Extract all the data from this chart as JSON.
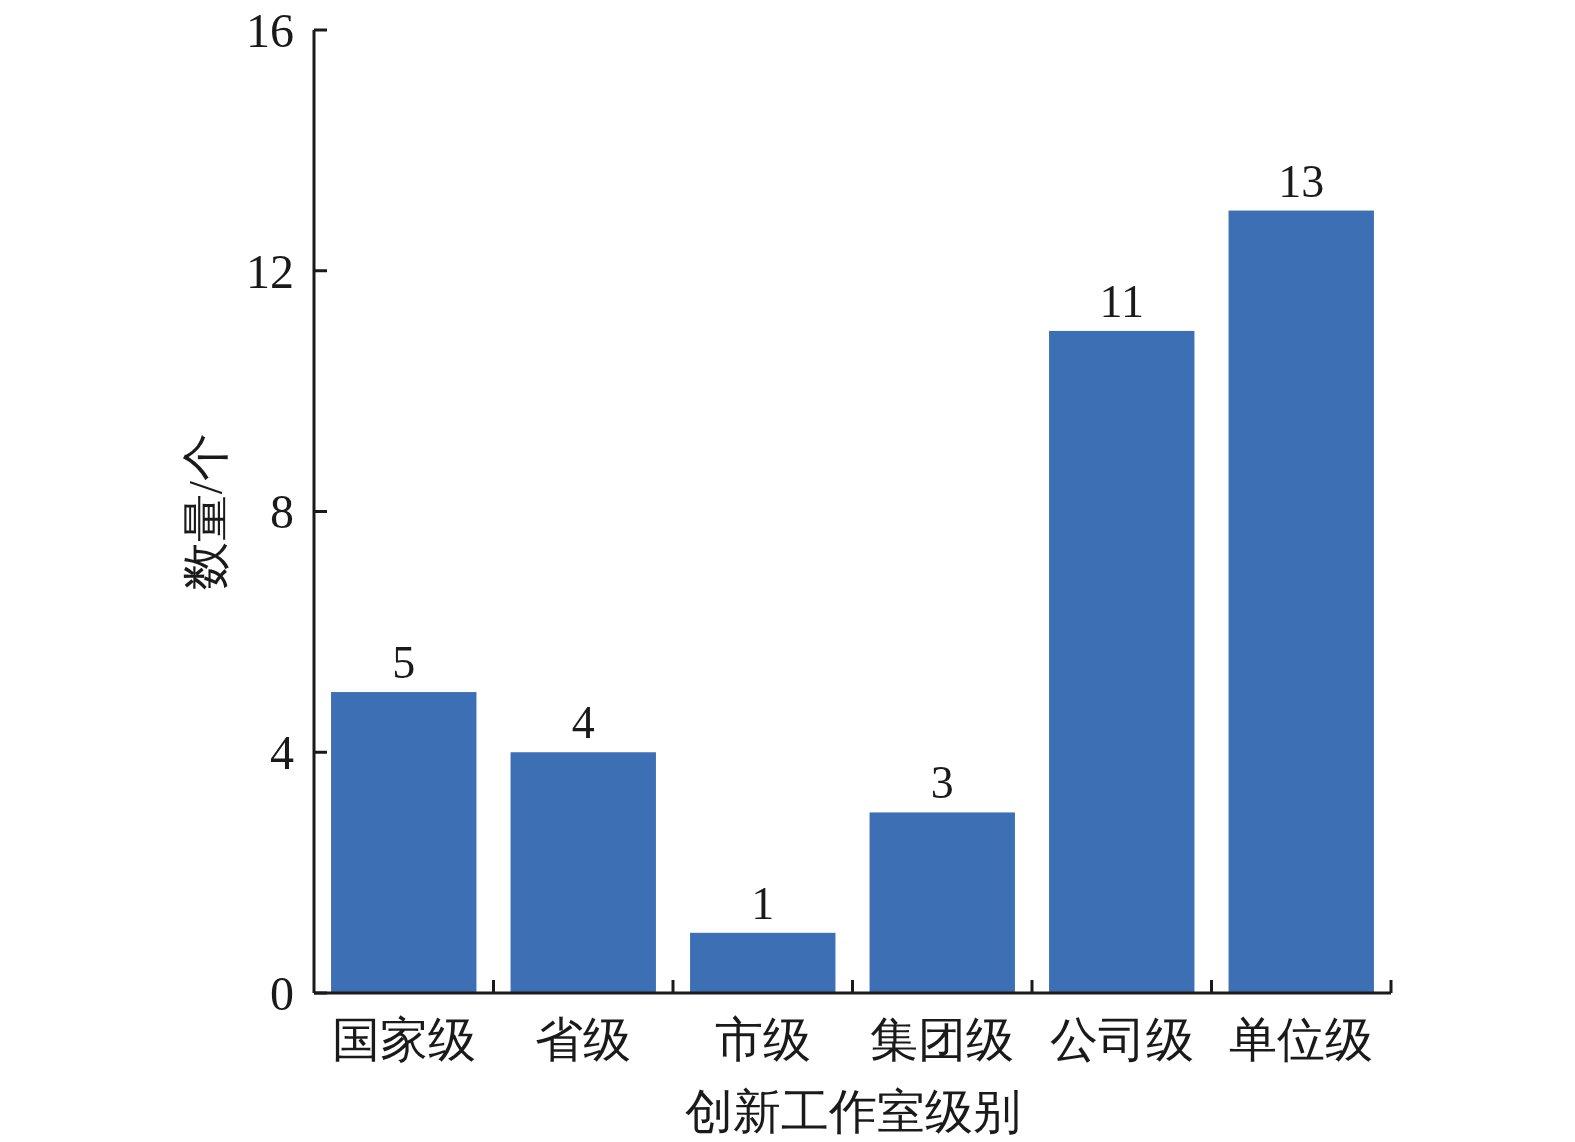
{
  "chart_data": {
    "type": "bar",
    "xlabel": "创新工作室级别",
    "ylabel": "数量/个",
    "categories": [
      "国家级",
      "省级",
      "市级",
      "集团级",
      "公司级",
      "单位级"
    ],
    "values": [
      5,
      4,
      1,
      3,
      11,
      13
    ],
    "color": "#3d6fb5",
    "ylim": [
      0,
      16
    ],
    "yticks": [
      0,
      4,
      8,
      12,
      16
    ],
    "data_labels": true
  }
}
